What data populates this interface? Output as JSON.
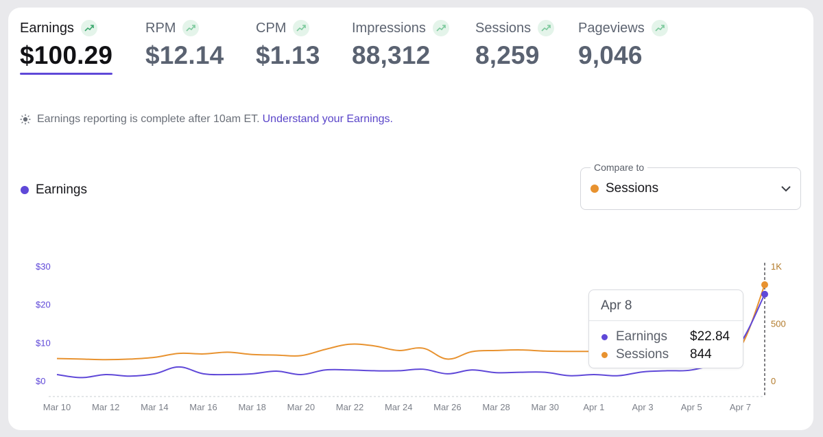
{
  "metrics": [
    {
      "label": "Earnings",
      "value": "$100.29",
      "active": true
    },
    {
      "label": "RPM",
      "value": "$12.14",
      "active": false
    },
    {
      "label": "CPM",
      "value": "$1.13",
      "active": false
    },
    {
      "label": "Impressions",
      "value": "88,312",
      "active": false
    },
    {
      "label": "Sessions",
      "value": "8,259",
      "active": false
    },
    {
      "label": "Pageviews",
      "value": "9,046",
      "active": false
    }
  ],
  "note": {
    "text": "Earnings reporting is complete after 10am ET.",
    "link": "Understand your Earnings."
  },
  "legend": {
    "label": "Earnings"
  },
  "compare": {
    "label": "Compare to",
    "value": "Sessions"
  },
  "colors": {
    "earnings": "#5f48d8",
    "sessions": "#e8922f",
    "trend_up": "#3aa76d"
  },
  "icons": {
    "trend": "trending-up-icon",
    "note": "sun-icon",
    "dropdown": "chevron-down-icon"
  },
  "tooltip": {
    "date": "Apr 8",
    "rows": [
      {
        "label": "Earnings",
        "value": "$22.84"
      },
      {
        "label": "Sessions",
        "value": "844"
      }
    ]
  },
  "chart_data": {
    "type": "line",
    "x": [
      "Mar 10",
      "Mar 11",
      "Mar 12",
      "Mar 13",
      "Mar 14",
      "Mar 15",
      "Mar 16",
      "Mar 17",
      "Mar 18",
      "Mar 19",
      "Mar 20",
      "Mar 21",
      "Mar 22",
      "Mar 23",
      "Mar 24",
      "Mar 25",
      "Mar 26",
      "Mar 27",
      "Mar 28",
      "Mar 29",
      "Mar 30",
      "Mar 31",
      "Apr 1",
      "Apr 2",
      "Apr 3",
      "Apr 4",
      "Apr 5",
      "Apr 6",
      "Apr 7",
      "Apr 8"
    ],
    "xticks": [
      "Mar 10",
      "Mar 12",
      "Mar 14",
      "Mar 16",
      "Mar 18",
      "Mar 20",
      "Mar 22",
      "Mar 24",
      "Mar 26",
      "Mar 28",
      "Mar 30",
      "Apr 1",
      "Apr 3",
      "Apr 5",
      "Apr 7"
    ],
    "series": [
      {
        "name": "Earnings",
        "axis": "left",
        "values": [
          1.8,
          1.0,
          1.8,
          1.4,
          2.0,
          3.8,
          2.0,
          1.8,
          2.0,
          2.7,
          1.8,
          3.0,
          3.0,
          2.8,
          2.8,
          3.2,
          2.0,
          3.0,
          2.3,
          2.4,
          2.4,
          1.5,
          1.8,
          1.5,
          2.5,
          2.8,
          3.0,
          5.0,
          10.0,
          22.84
        ]
      },
      {
        "name": "Sessions",
        "axis": "right",
        "values": [
          200,
          195,
          190,
          195,
          210,
          245,
          240,
          255,
          235,
          230,
          225,
          280,
          325,
          310,
          270,
          290,
          195,
          260,
          270,
          275,
          265,
          262,
          262,
          262,
          262,
          262,
          262,
          262,
          300,
          844
        ]
      }
    ],
    "left_axis": {
      "ticks": [
        "$0",
        "$10",
        "$20",
        "$30"
      ],
      "range": [
        0,
        30
      ]
    },
    "right_axis": {
      "ticks": [
        "0",
        "500",
        "1K"
      ],
      "range": [
        0,
        1000
      ]
    },
    "highlight": "Apr 8",
    "grid": false
  }
}
